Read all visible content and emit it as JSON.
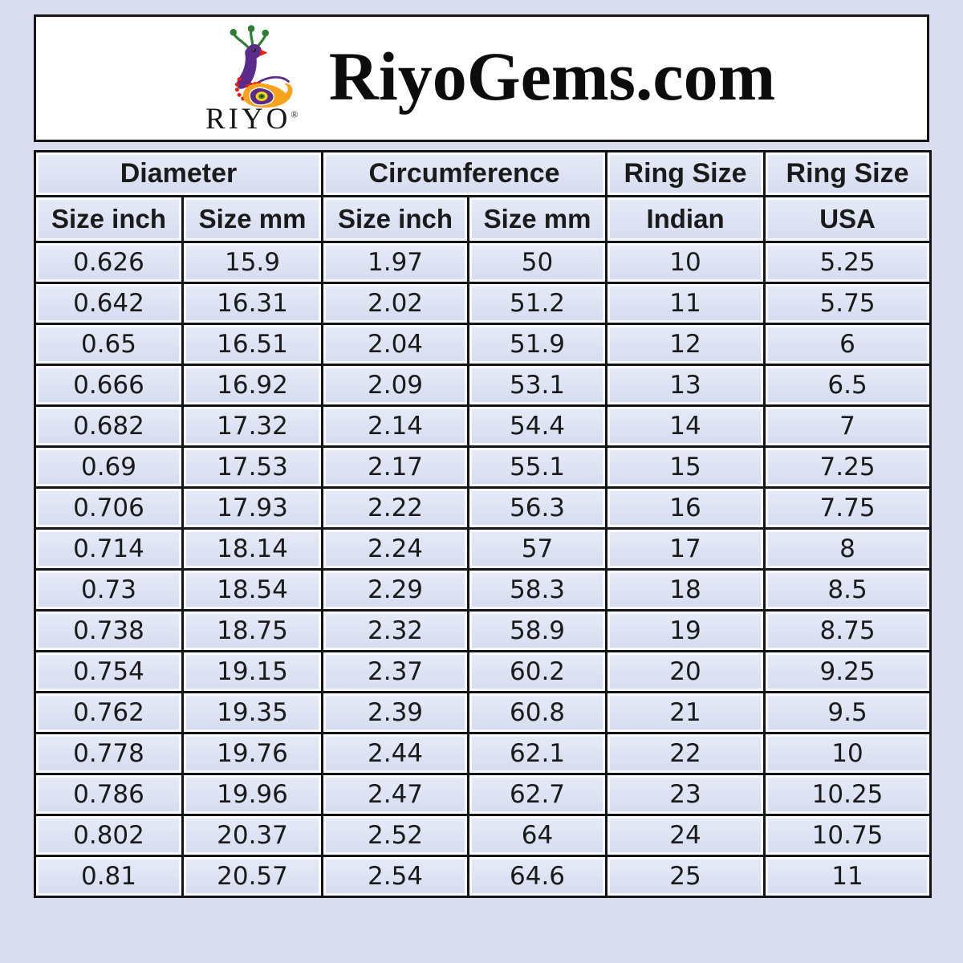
{
  "header": {
    "title": "RiyoGems.com",
    "logo": {
      "brand": "RIYO",
      "registered": "®",
      "icon": "peacock-icon"
    }
  },
  "chart_data": {
    "type": "table",
    "column_groups": [
      {
        "label": "Diameter",
        "span": 2
      },
      {
        "label": "Circumference",
        "span": 2
      },
      {
        "label": "Ring Size",
        "span": 1
      },
      {
        "label": "Ring Size",
        "span": 1
      }
    ],
    "columns": [
      "Size inch",
      "Size mm",
      "Size inch",
      "Size mm",
      "Indian",
      "USA"
    ],
    "rows": [
      [
        "0.626",
        "15.9",
        "1.97",
        "50",
        "10",
        "5.25"
      ],
      [
        "0.642",
        "16.31",
        "2.02",
        "51.2",
        "11",
        "5.75"
      ],
      [
        "0.65",
        "16.51",
        "2.04",
        "51.9",
        "12",
        "6"
      ],
      [
        "0.666",
        "16.92",
        "2.09",
        "53.1",
        "13",
        "6.5"
      ],
      [
        "0.682",
        "17.32",
        "2.14",
        "54.4",
        "14",
        "7"
      ],
      [
        "0.69",
        "17.53",
        "2.17",
        "55.1",
        "15",
        "7.25"
      ],
      [
        "0.706",
        "17.93",
        "2.22",
        "56.3",
        "16",
        "7.75"
      ],
      [
        "0.714",
        "18.14",
        "2.24",
        "57",
        "17",
        "8"
      ],
      [
        "0.73",
        "18.54",
        "2.29",
        "58.3",
        "18",
        "8.5"
      ],
      [
        "0.738",
        "18.75",
        "2.32",
        "58.9",
        "19",
        "8.75"
      ],
      [
        "0.754",
        "19.15",
        "2.37",
        "60.2",
        "20",
        "9.25"
      ],
      [
        "0.762",
        "19.35",
        "2.39",
        "60.8",
        "21",
        "9.5"
      ],
      [
        "0.778",
        "19.76",
        "2.44",
        "62.1",
        "22",
        "10"
      ],
      [
        "0.786",
        "19.96",
        "2.47",
        "62.7",
        "23",
        "10.25"
      ],
      [
        "0.802",
        "20.37",
        "2.52",
        "64",
        "24",
        "10.75"
      ],
      [
        "0.81",
        "20.57",
        "2.54",
        "64.6",
        "25",
        "11"
      ]
    ],
    "highlighted_column": "Indian",
    "layout": {
      "grid": true,
      "header_rows": 2
    }
  },
  "colors": {
    "page_bg": "#d9ddef",
    "banner_bg": "#ffffff",
    "grid_border": "#141414",
    "cell_bg": "#dfe4f4",
    "indian_column_bg": "#b7c6e8",
    "text": "#1b1b1b",
    "logo_purple": "#5a2b8a",
    "logo_green": "#2e7d32",
    "logo_orange": "#f7a31c",
    "logo_red": "#e62011",
    "logo_yellow": "#ffd400"
  }
}
